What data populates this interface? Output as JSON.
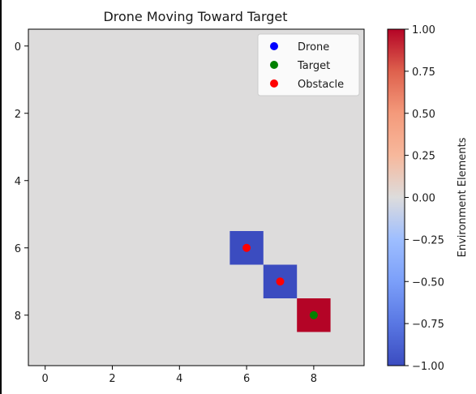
{
  "chart_data": {
    "type": "heatmap",
    "title": "Drone Moving Toward Target",
    "xlabel": "",
    "ylabel": "",
    "grid_size": [
      10,
      10
    ],
    "xlim": [
      -0.5,
      9.5
    ],
    "ylim": [
      9.5,
      -0.5
    ],
    "x_ticks": [
      0,
      2,
      4,
      6,
      8
    ],
    "x_tick_labels": [
      "0",
      "2",
      "4",
      "6",
      "8"
    ],
    "y_ticks": [
      0,
      2,
      4,
      6,
      8
    ],
    "y_tick_labels": [
      "0",
      "2",
      "4",
      "6",
      "8"
    ],
    "background_value": 0.0,
    "cells": [
      {
        "x": 6,
        "y": 6,
        "value": -1.0
      },
      {
        "x": 7,
        "y": 7,
        "value": -1.0
      },
      {
        "x": 8,
        "y": 8,
        "value": 1.0
      }
    ],
    "markers": [
      {
        "series": "Target",
        "x": 8,
        "y": 8
      },
      {
        "series": "Obstacle",
        "x": 6,
        "y": 6
      },
      {
        "series": "Obstacle",
        "x": 7,
        "y": 7
      }
    ],
    "legend": {
      "placement": "top-right",
      "entries": [
        {
          "label": "Drone",
          "color": "#0000ff"
        },
        {
          "label": "Target",
          "color": "#008000"
        },
        {
          "label": "Obstacle",
          "color": "#ff0000"
        }
      ]
    },
    "colorbar": {
      "label": "Environment Elements",
      "colormap": "coolwarm",
      "range": [
        -1.0,
        1.0
      ],
      "ticks": [
        1.0,
        0.75,
        0.5,
        0.25,
        0.0,
        -0.25,
        -0.5,
        -0.75,
        -1.0
      ],
      "tick_labels": [
        "1.00",
        "0.75",
        "0.50",
        "0.25",
        "0.00",
        "−0.25",
        "−0.50",
        "−0.75",
        "−1.00"
      ]
    },
    "colors": {
      "neutral": "#dddcdc",
      "negative": "#3b4cc0",
      "positive": "#b40426"
    }
  }
}
